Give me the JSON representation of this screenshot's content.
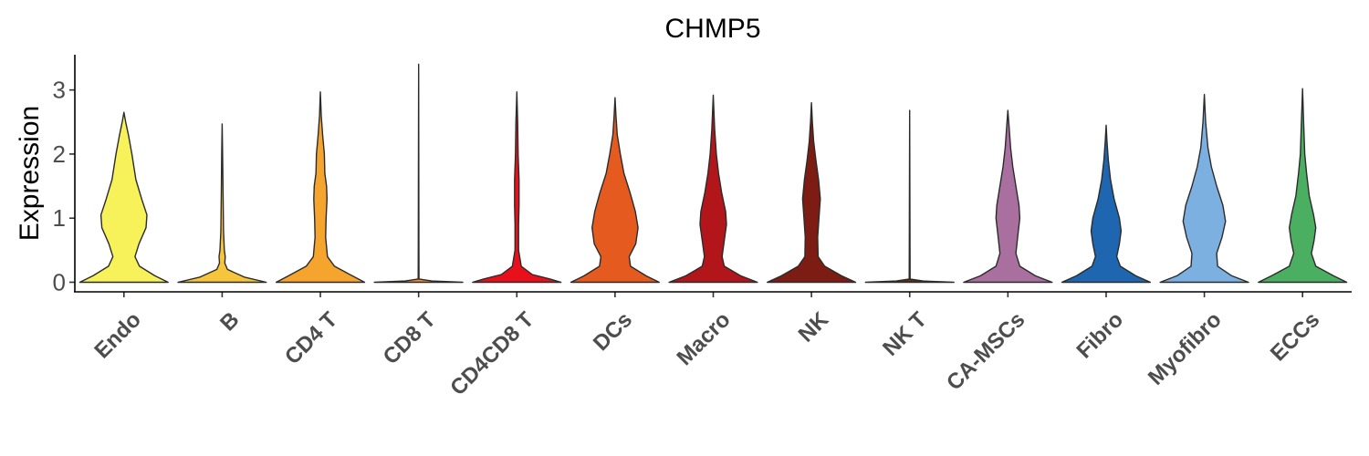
{
  "chart_data": {
    "type": "violin",
    "title": "CHMP5",
    "ylabel": "Expression",
    "xlabel": "",
    "ylim": [
      -0.15,
      3.55
    ],
    "yticks": [
      0,
      1,
      2,
      3
    ],
    "grid": false,
    "legend": "none",
    "categories": [
      "Endo",
      "B",
      "CD4 T",
      "CD8 T",
      "CD4CD8 T",
      "DCs",
      "Macro",
      "NK",
      "NK T",
      "CA-MSCs",
      "Fibro",
      "Myofibro",
      "ECCs"
    ],
    "colors": [
      "#F7F15A",
      "#F6C53B",
      "#F5A52E",
      "#F28C28",
      "#E8101A",
      "#E55A1E",
      "#B2161B",
      "#7C1C12",
      "#5E2D14",
      "#A9709F",
      "#1E66B0",
      "#7CB0E0",
      "#4BAF62"
    ],
    "series": [
      {
        "category": "Endo",
        "max": 2.65,
        "density": [
          [
            0.0,
            1.0
          ],
          [
            0.1,
            0.7
          ],
          [
            0.25,
            0.35
          ],
          [
            0.4,
            0.25
          ],
          [
            0.6,
            0.34
          ],
          [
            0.85,
            0.5
          ],
          [
            1.05,
            0.52
          ],
          [
            1.3,
            0.4
          ],
          [
            1.6,
            0.27
          ],
          [
            2.0,
            0.18
          ],
          [
            2.3,
            0.1
          ],
          [
            2.5,
            0.04
          ],
          [
            2.65,
            0.0
          ]
        ]
      },
      {
        "category": "B",
        "max": 2.47,
        "density": [
          [
            0.0,
            1.0
          ],
          [
            0.08,
            0.5
          ],
          [
            0.2,
            0.12
          ],
          [
            0.3,
            0.06
          ],
          [
            0.4,
            0.07
          ],
          [
            0.5,
            0.05
          ],
          [
            0.8,
            0.03
          ],
          [
            1.4,
            0.02
          ],
          [
            2.0,
            0.01
          ],
          [
            2.47,
            0.0
          ]
        ]
      },
      {
        "category": "CD4 T",
        "max": 2.97,
        "density": [
          [
            0.0,
            1.0
          ],
          [
            0.1,
            0.72
          ],
          [
            0.25,
            0.32
          ],
          [
            0.4,
            0.16
          ],
          [
            0.7,
            0.12
          ],
          [
            1.0,
            0.13
          ],
          [
            1.3,
            0.15
          ],
          [
            1.5,
            0.14
          ],
          [
            1.7,
            0.1
          ],
          [
            2.0,
            0.09
          ],
          [
            2.3,
            0.05
          ],
          [
            2.6,
            0.02
          ],
          [
            2.97,
            0.0
          ]
        ]
      },
      {
        "category": "CD8 T",
        "max": 3.4,
        "density": [
          [
            0.0,
            1.0
          ],
          [
            0.02,
            0.3
          ],
          [
            0.05,
            0.01
          ],
          [
            0.5,
            0.008
          ],
          [
            3.4,
            0.0
          ]
        ]
      },
      {
        "category": "CD4CD8 T",
        "max": 2.97,
        "density": [
          [
            0.0,
            1.0
          ],
          [
            0.05,
            0.75
          ],
          [
            0.12,
            0.35
          ],
          [
            0.25,
            0.1
          ],
          [
            0.5,
            0.04
          ],
          [
            0.9,
            0.04
          ],
          [
            1.2,
            0.05
          ],
          [
            1.6,
            0.05
          ],
          [
            2.0,
            0.03
          ],
          [
            2.5,
            0.02
          ],
          [
            2.97,
            0.0
          ]
        ]
      },
      {
        "category": "DCs",
        "max": 2.88,
        "density": [
          [
            0.0,
            1.0
          ],
          [
            0.1,
            0.7
          ],
          [
            0.25,
            0.35
          ],
          [
            0.4,
            0.32
          ],
          [
            0.6,
            0.47
          ],
          [
            0.85,
            0.52
          ],
          [
            1.1,
            0.46
          ],
          [
            1.4,
            0.34
          ],
          [
            1.7,
            0.2
          ],
          [
            2.0,
            0.12
          ],
          [
            2.3,
            0.05
          ],
          [
            2.6,
            0.02
          ],
          [
            2.88,
            0.0
          ]
        ]
      },
      {
        "category": "Macro",
        "max": 2.92,
        "density": [
          [
            0.0,
            1.0
          ],
          [
            0.1,
            0.62
          ],
          [
            0.25,
            0.25
          ],
          [
            0.4,
            0.2
          ],
          [
            0.6,
            0.24
          ],
          [
            0.9,
            0.3
          ],
          [
            1.1,
            0.28
          ],
          [
            1.4,
            0.19
          ],
          [
            1.7,
            0.12
          ],
          [
            2.0,
            0.07
          ],
          [
            2.4,
            0.03
          ],
          [
            2.92,
            0.0
          ]
        ]
      },
      {
        "category": "NK",
        "max": 2.8,
        "density": [
          [
            0.0,
            1.0
          ],
          [
            0.1,
            0.68
          ],
          [
            0.25,
            0.3
          ],
          [
            0.4,
            0.15
          ],
          [
            0.7,
            0.14
          ],
          [
            1.0,
            0.17
          ],
          [
            1.3,
            0.2
          ],
          [
            1.6,
            0.16
          ],
          [
            1.9,
            0.1
          ],
          [
            2.2,
            0.05
          ],
          [
            2.5,
            0.02
          ],
          [
            2.8,
            0.0
          ]
        ]
      },
      {
        "category": "NK T",
        "max": 2.68,
        "density": [
          [
            0.0,
            1.0
          ],
          [
            0.02,
            0.3
          ],
          [
            0.05,
            0.01
          ],
          [
            0.5,
            0.008
          ],
          [
            2.68,
            0.0
          ]
        ]
      },
      {
        "category": "CA-MSCs",
        "max": 2.68,
        "density": [
          [
            0.0,
            1.0
          ],
          [
            0.1,
            0.62
          ],
          [
            0.25,
            0.27
          ],
          [
            0.45,
            0.18
          ],
          [
            0.7,
            0.22
          ],
          [
            1.0,
            0.27
          ],
          [
            1.2,
            0.25
          ],
          [
            1.5,
            0.18
          ],
          [
            1.8,
            0.11
          ],
          [
            2.1,
            0.06
          ],
          [
            2.4,
            0.03
          ],
          [
            2.68,
            0.0
          ]
        ]
      },
      {
        "category": "Fibro",
        "max": 2.45,
        "density": [
          [
            0.0,
            1.0
          ],
          [
            0.1,
            0.67
          ],
          [
            0.25,
            0.32
          ],
          [
            0.4,
            0.24
          ],
          [
            0.6,
            0.3
          ],
          [
            0.8,
            0.34
          ],
          [
            1.0,
            0.3
          ],
          [
            1.3,
            0.18
          ],
          [
            1.6,
            0.1
          ],
          [
            1.9,
            0.05
          ],
          [
            2.2,
            0.02
          ],
          [
            2.45,
            0.0
          ]
        ]
      },
      {
        "category": "Myofibro",
        "max": 2.93,
        "density": [
          [
            0.0,
            1.0
          ],
          [
            0.1,
            0.62
          ],
          [
            0.25,
            0.3
          ],
          [
            0.45,
            0.28
          ],
          [
            0.7,
            0.4
          ],
          [
            0.95,
            0.48
          ],
          [
            1.2,
            0.42
          ],
          [
            1.5,
            0.28
          ],
          [
            1.8,
            0.16
          ],
          [
            2.1,
            0.08
          ],
          [
            2.5,
            0.03
          ],
          [
            2.93,
            0.0
          ]
        ]
      },
      {
        "category": "ECCs",
        "max": 3.02,
        "density": [
          [
            0.0,
            1.0
          ],
          [
            0.1,
            0.7
          ],
          [
            0.25,
            0.3
          ],
          [
            0.45,
            0.2
          ],
          [
            0.65,
            0.26
          ],
          [
            0.85,
            0.3
          ],
          [
            1.05,
            0.25
          ],
          [
            1.35,
            0.15
          ],
          [
            1.7,
            0.09
          ],
          [
            2.0,
            0.05
          ],
          [
            2.4,
            0.03
          ],
          [
            3.02,
            0.0
          ]
        ]
      }
    ]
  }
}
